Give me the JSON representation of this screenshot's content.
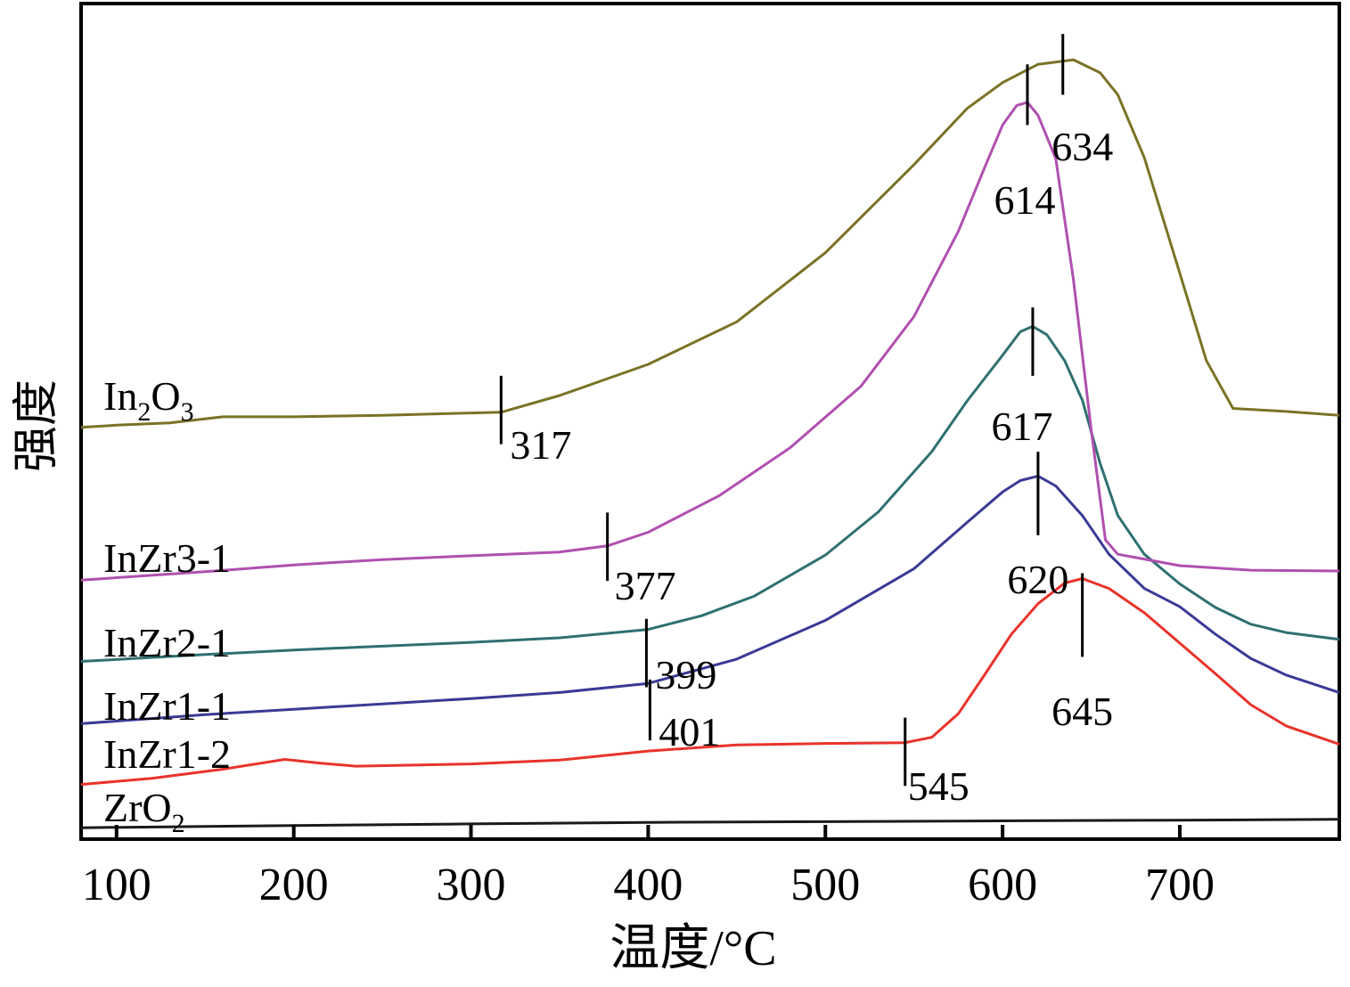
{
  "chart_data": {
    "type": "line",
    "title": "",
    "xlabel": "温度/°C",
    "ylabel": "强度",
    "xlim": [
      80,
      790
    ],
    "ylim": [
      0,
      110
    ],
    "x_ticks": [
      100,
      200,
      300,
      400,
      500,
      600,
      700
    ],
    "grid": false,
    "legend": "inline labels at left of each curve",
    "series": [
      {
        "name": "ZrO2",
        "label_main": "ZrO",
        "label_sub": "2",
        "label_sub2": "",
        "color": "#1a1a1a",
        "points": [
          [
            80,
            1.5
          ],
          [
            200,
            1.8
          ],
          [
            300,
            2.0
          ],
          [
            400,
            2.2
          ],
          [
            500,
            2.3
          ],
          [
            600,
            2.4
          ],
          [
            700,
            2.5
          ],
          [
            790,
            2.6
          ]
        ],
        "peaks": []
      },
      {
        "name": "InZr1-2",
        "label_main": "InZr1-2",
        "label_sub": "",
        "label_sub2": "",
        "color": "#e8332b",
        "points": [
          [
            80,
            7.2
          ],
          [
            120,
            8
          ],
          [
            160,
            9.2
          ],
          [
            195,
            10.5
          ],
          [
            215,
            10
          ],
          [
            235,
            9.6
          ],
          [
            300,
            9.9
          ],
          [
            350,
            10.4
          ],
          [
            400,
            11.6
          ],
          [
            450,
            12.4
          ],
          [
            500,
            12.6
          ],
          [
            545,
            12.7
          ],
          [
            560,
            13.4
          ],
          [
            575,
            16.5
          ],
          [
            590,
            21.7
          ],
          [
            605,
            27
          ],
          [
            620,
            31
          ],
          [
            635,
            33.7
          ],
          [
            645,
            34.3
          ],
          [
            660,
            33
          ],
          [
            680,
            29.8
          ],
          [
            700,
            25.8
          ],
          [
            720,
            21.8
          ],
          [
            740,
            17.7
          ],
          [
            760,
            14.9
          ],
          [
            790,
            12.5
          ]
        ],
        "peaks": [
          {
            "x": 545,
            "text": "545",
            "y0": 7,
            "y1": 16
          },
          {
            "x": 645,
            "text": "645",
            "y0": 24,
            "y1": 35
          }
        ]
      },
      {
        "name": "InZr1-1",
        "label_main": "InZr1-1",
        "label_sub": "",
        "label_sub2": "",
        "color": "#3a3a96",
        "points": [
          [
            80,
            15.2
          ],
          [
            150,
            16.4
          ],
          [
            200,
            17.1
          ],
          [
            250,
            17.8
          ],
          [
            300,
            18.5
          ],
          [
            350,
            19.3
          ],
          [
            400,
            20.5
          ],
          [
            450,
            23.7
          ],
          [
            500,
            28.8
          ],
          [
            550,
            35.6
          ],
          [
            580,
            41.7
          ],
          [
            600,
            45.7
          ],
          [
            610,
            47.2
          ],
          [
            620,
            47.8
          ],
          [
            630,
            46.5
          ],
          [
            645,
            42.6
          ],
          [
            660,
            37.5
          ],
          [
            680,
            33
          ],
          [
            700,
            30.6
          ],
          [
            720,
            27
          ],
          [
            740,
            23.8
          ],
          [
            760,
            21.6
          ],
          [
            790,
            19.3
          ]
        ],
        "peaks": [
          {
            "x": 401,
            "text": "401",
            "y0": 13,
            "y1": 21
          },
          {
            "x": 620,
            "text": "620",
            "y0": 40,
            "y1": 51
          }
        ]
      },
      {
        "name": "InZr2-1",
        "label_main": "InZr2-1",
        "label_sub": "",
        "label_sub2": "",
        "color": "#2f7070",
        "points": [
          [
            80,
            23.4
          ],
          [
            150,
            24.3
          ],
          [
            200,
            24.9
          ],
          [
            250,
            25.4
          ],
          [
            300,
            25.9
          ],
          [
            350,
            26.5
          ],
          [
            400,
            27.6
          ],
          [
            430,
            29.4
          ],
          [
            460,
            32
          ],
          [
            500,
            37.4
          ],
          [
            530,
            43.1
          ],
          [
            560,
            51
          ],
          [
            580,
            57.7
          ],
          [
            600,
            63.7
          ],
          [
            610,
            66.8
          ],
          [
            617,
            67.5
          ],
          [
            625,
            66.4
          ],
          [
            635,
            63
          ],
          [
            645,
            57.8
          ],
          [
            655,
            49.5
          ],
          [
            665,
            42.6
          ],
          [
            680,
            37.5
          ],
          [
            700,
            33.6
          ],
          [
            720,
            30.5
          ],
          [
            740,
            28.3
          ],
          [
            760,
            27.2
          ],
          [
            790,
            26.3
          ]
        ],
        "peaks": [
          {
            "x": 399,
            "text": "399",
            "y0": 20,
            "y1": 29
          },
          {
            "x": 617,
            "text": "617",
            "y0": 61,
            "y1": 70
          }
        ]
      },
      {
        "name": "InZr3-1",
        "label_main": "InZr3-1",
        "label_sub": "",
        "label_sub2": "",
        "color": "#b050b0",
        "points": [
          [
            80,
            34.1
          ],
          [
            150,
            35.2
          ],
          [
            200,
            36.1
          ],
          [
            250,
            36.8
          ],
          [
            300,
            37.3
          ],
          [
            350,
            37.8
          ],
          [
            377,
            38.6
          ],
          [
            400,
            40.4
          ],
          [
            440,
            45.2
          ],
          [
            480,
            51.5
          ],
          [
            520,
            59.6
          ],
          [
            550,
            68.8
          ],
          [
            575,
            80
          ],
          [
            590,
            88.5
          ],
          [
            600,
            94
          ],
          [
            608,
            96.6
          ],
          [
            614,
            97
          ],
          [
            620,
            95.3
          ],
          [
            630,
            89.6
          ],
          [
            640,
            73.6
          ],
          [
            650,
            53.9
          ],
          [
            658,
            39.4
          ],
          [
            665,
            37.5
          ],
          [
            700,
            36
          ],
          [
            740,
            35.4
          ],
          [
            790,
            35.3
          ]
        ],
        "peaks": [
          {
            "x": 377,
            "text": "377",
            "y0": 34,
            "y1": 43
          },
          {
            "x": 614,
            "text": "614",
            "y0": 94,
            "y1": 102
          }
        ]
      },
      {
        "name": "In2O3",
        "label_main": "In",
        "label_sub": "2",
        "label_sub2": "3",
        "label_mid": "O",
        "color": "#7a7326",
        "points": [
          [
            80,
            54.2
          ],
          [
            100,
            54.5
          ],
          [
            130,
            54.8
          ],
          [
            160,
            55.6
          ],
          [
            200,
            55.6
          ],
          [
            250,
            55.8
          ],
          [
            300,
            56.1
          ],
          [
            317,
            56.2
          ],
          [
            350,
            58.4
          ],
          [
            400,
            62.5
          ],
          [
            450,
            68.1
          ],
          [
            500,
            77.2
          ],
          [
            550,
            88.8
          ],
          [
            580,
            96.2
          ],
          [
            600,
            99.6
          ],
          [
            620,
            102
          ],
          [
            640,
            102.6
          ],
          [
            655,
            100.9
          ],
          [
            665,
            98
          ],
          [
            680,
            89.7
          ],
          [
            700,
            74.5
          ],
          [
            715,
            63
          ],
          [
            730,
            56.7
          ],
          [
            760,
            56.3
          ],
          [
            790,
            55.8
          ]
        ],
        "peaks": [
          {
            "x": 317,
            "text": "317",
            "y0": 52,
            "y1": 61
          },
          {
            "x": 634,
            "text": "634",
            "y0": 98,
            "y1": 106
          }
        ]
      }
    ]
  }
}
